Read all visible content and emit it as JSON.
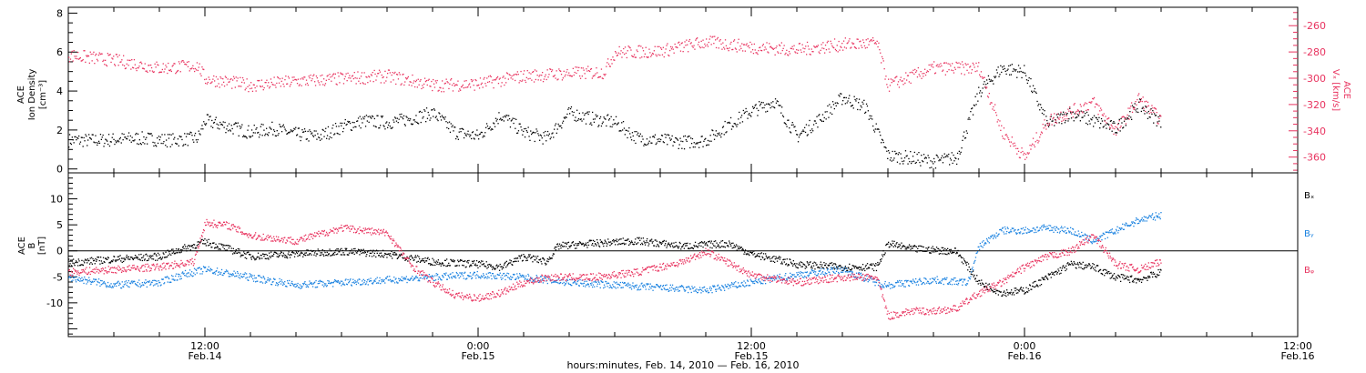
{
  "chart_data": [
    {
      "type": "scatter",
      "panel": "top",
      "ylabel": [
        "ACE",
        "Ion Density",
        "[cm⁻³]"
      ],
      "ylim": [
        -0.2,
        8.3
      ],
      "yticks": [
        0,
        2,
        4,
        6,
        8
      ],
      "y2label": [
        "ACE",
        "Vₓ [km/s]"
      ],
      "y2lim": [
        -372,
        -246
      ],
      "y2ticks": [
        -260,
        -280,
        -300,
        -320,
        -340,
        -360
      ],
      "series": [
        {
          "color": "#000000",
          "axis": "left",
          "points": [
            [
              "2010-02-14T06:00",
              1.5
            ],
            [
              "2010-02-14T07:30",
              1.5
            ],
            [
              "2010-02-14T09:00",
              1.6
            ],
            [
              "2010-02-14T10:30",
              1.5
            ],
            [
              "2010-02-14T11:40",
              1.6
            ],
            [
              "2010-02-14T12:00",
              2.5
            ],
            [
              "2010-02-14T13:00",
              2.2
            ],
            [
              "2010-02-14T14:00",
              1.9
            ],
            [
              "2010-02-14T15:00",
              2.1
            ],
            [
              "2010-02-14T16:00",
              1.8
            ],
            [
              "2010-02-14T17:00",
              1.7
            ],
            [
              "2010-02-14T18:00",
              2.2
            ],
            [
              "2010-02-14T19:00",
              2.5
            ],
            [
              "2010-02-14T20:00",
              2.4
            ],
            [
              "2010-02-14T21:00",
              2.6
            ],
            [
              "2010-02-14T22:00",
              2.9
            ],
            [
              "2010-02-14T23:00",
              1.9
            ],
            [
              "2010-02-15T00:00",
              1.7
            ],
            [
              "2010-02-15T01:00",
              2.8
            ],
            [
              "2010-02-15T02:00",
              1.9
            ],
            [
              "2010-02-15T03:00",
              1.6
            ],
            [
              "2010-02-15T04:00",
              2.9
            ],
            [
              "2010-02-15T05:00",
              2.6
            ],
            [
              "2010-02-15T06:00",
              2.4
            ],
            [
              "2010-02-15T07:00",
              1.6
            ],
            [
              "2010-02-15T08:00",
              1.5
            ],
            [
              "2010-02-15T09:00",
              1.4
            ],
            [
              "2010-02-15T10:00",
              1.5
            ],
            [
              "2010-02-15T11:00",
              2.3
            ],
            [
              "2010-02-15T12:00",
              3.0
            ],
            [
              "2010-02-15T13:00",
              3.5
            ],
            [
              "2010-02-15T14:00",
              1.7
            ],
            [
              "2010-02-15T15:00",
              2.6
            ],
            [
              "2010-02-15T16:00",
              3.7
            ],
            [
              "2010-02-15T17:00",
              3.2
            ],
            [
              "2010-02-15T18:00",
              0.7
            ],
            [
              "2010-02-15T19:00",
              0.6
            ],
            [
              "2010-02-15T20:00",
              0.4
            ],
            [
              "2010-02-15T21:00",
              0.6
            ],
            [
              "2010-02-15T22:00",
              4.0
            ],
            [
              "2010-02-15T23:00",
              5.2
            ],
            [
              "2010-02-16T00:00",
              5.0
            ],
            [
              "2010-02-16T01:00",
              2.3
            ],
            [
              "2010-02-16T02:00",
              2.9
            ],
            [
              "2010-02-16T03:00",
              2.5
            ],
            [
              "2010-02-16T04:00",
              2.1
            ],
            [
              "2010-02-16T05:00",
              3.3
            ],
            [
              "2010-02-16T06:00",
              2.4
            ]
          ]
        },
        {
          "color": "#e8335f",
          "axis": "right",
          "points": [
            [
              "2010-02-14T06:00",
              -282
            ],
            [
              "2010-02-14T08:00",
              -286
            ],
            [
              "2010-02-14T10:00",
              -292
            ],
            [
              "2010-02-14T11:40",
              -290
            ],
            [
              "2010-02-14T12:00",
              -300
            ],
            [
              "2010-02-14T14:00",
              -305
            ],
            [
              "2010-02-14T16:00",
              -302
            ],
            [
              "2010-02-14T18:00",
              -300
            ],
            [
              "2010-02-14T20:00",
              -298
            ],
            [
              "2010-02-14T22:00",
              -305
            ],
            [
              "2010-02-15T00:00",
              -304
            ],
            [
              "2010-02-15T02:00",
              -298
            ],
            [
              "2010-02-15T04:00",
              -296
            ],
            [
              "2010-02-15T05:30",
              -295
            ],
            [
              "2010-02-15T06:00",
              -280
            ],
            [
              "2010-02-15T08:00",
              -279
            ],
            [
              "2010-02-15T10:00",
              -272
            ],
            [
              "2010-02-15T12:00",
              -276
            ],
            [
              "2010-02-15T14:00",
              -278
            ],
            [
              "2010-02-15T16:00",
              -274
            ],
            [
              "2010-02-15T17:30",
              -273
            ],
            [
              "2010-02-15T18:00",
              -305
            ],
            [
              "2010-02-15T20:00",
              -292
            ],
            [
              "2010-02-15T22:00",
              -292
            ],
            [
              "2010-02-15T23:00",
              -340
            ],
            [
              "2010-02-16T00:00",
              -360
            ],
            [
              "2010-02-16T01:00",
              -332
            ],
            [
              "2010-02-16T02:00",
              -325
            ],
            [
              "2010-02-16T03:00",
              -318
            ],
            [
              "2010-02-16T04:00",
              -340
            ],
            [
              "2010-02-16T05:00",
              -315
            ],
            [
              "2010-02-16T06:00",
              -332
            ]
          ]
        }
      ]
    },
    {
      "type": "scatter",
      "panel": "bottom",
      "ylabel": [
        "ACE",
        "B",
        "[nT]"
      ],
      "ylim": [
        -16.5,
        15
      ],
      "yticks": [
        -10,
        -5,
        0,
        5,
        10
      ],
      "zero_line": true,
      "xlabel": "hours:minutes, Feb. 14, 2010 — Feb. 16, 2010",
      "xlim": [
        "2010-02-14T06:00",
        "2010-02-16T12:00"
      ],
      "xtick_labels": [
        {
          "t": "2010-02-14T12:00",
          "time": "12:00",
          "date": "Feb.14"
        },
        {
          "t": "2010-02-15T00:00",
          "time": "0:00",
          "date": "Feb.15"
        },
        {
          "t": "2010-02-15T12:00",
          "time": "12:00",
          "date": "Feb.15"
        },
        {
          "t": "2010-02-16T00:00",
          "time": "0:00",
          "date": "Feb.16"
        },
        {
          "t": "2010-02-16T12:00",
          "time": "12:00",
          "date": "Feb.16"
        }
      ],
      "series": [
        {
          "name": "Bₓ",
          "color": "#000000",
          "points": [
            [
              "2010-02-14T06:00",
              -2.2
            ],
            [
              "2010-02-14T08:00",
              -1.5
            ],
            [
              "2010-02-14T10:00",
              -1.0
            ],
            [
              "2010-02-14T11:00",
              0.5
            ],
            [
              "2010-02-14T12:00",
              1.8
            ],
            [
              "2010-02-14T13:00",
              0.5
            ],
            [
              "2010-02-14T14:00",
              -1.0
            ],
            [
              "2010-02-14T16:00",
              -0.5
            ],
            [
              "2010-02-14T18:00",
              0.0
            ],
            [
              "2010-02-14T20:00",
              -0.5
            ],
            [
              "2010-02-14T22:00",
              -2.0
            ],
            [
              "2010-02-15T00:00",
              -2.5
            ],
            [
              "2010-02-15T01:00",
              -3.0
            ],
            [
              "2010-02-15T02:00",
              -1.0
            ],
            [
              "2010-02-15T03:00",
              -2.0
            ],
            [
              "2010-02-15T03:30",
              1.0
            ],
            [
              "2010-02-15T05:00",
              1.5
            ],
            [
              "2010-02-15T07:00",
              2.0
            ],
            [
              "2010-02-15T09:00",
              1.0
            ],
            [
              "2010-02-15T11:00",
              1.5
            ],
            [
              "2010-02-15T12:00",
              -0.5
            ],
            [
              "2010-02-15T14:00",
              -2.5
            ],
            [
              "2010-02-15T16:00",
              -3.0
            ],
            [
              "2010-02-15T17:30",
              -3.0
            ],
            [
              "2010-02-15T18:00",
              1.5
            ],
            [
              "2010-02-15T19:00",
              0.5
            ],
            [
              "2010-02-15T21:00",
              0.0
            ],
            [
              "2010-02-15T22:00",
              -6.0
            ],
            [
              "2010-02-15T23:00",
              -8.0
            ],
            [
              "2010-02-16T00:00",
              -7.5
            ],
            [
              "2010-02-16T01:00",
              -5.0
            ],
            [
              "2010-02-16T02:00",
              -2.5
            ],
            [
              "2010-02-16T03:00",
              -3.0
            ],
            [
              "2010-02-16T04:00",
              -5.0
            ],
            [
              "2010-02-16T05:00",
              -5.5
            ],
            [
              "2010-02-16T06:00",
              -4.0
            ]
          ]
        },
        {
          "name": "Bᵧ",
          "color": "#1a82e0",
          "points": [
            [
              "2010-02-14T06:00",
              -5.0
            ],
            [
              "2010-02-14T08:00",
              -6.5
            ],
            [
              "2010-02-14T10:00",
              -6.0
            ],
            [
              "2010-02-14T11:00",
              -4.5
            ],
            [
              "2010-02-14T12:00",
              -3.5
            ],
            [
              "2010-02-14T14:00",
              -5.0
            ],
            [
              "2010-02-14T16:00",
              -6.5
            ],
            [
              "2010-02-14T18:00",
              -6.0
            ],
            [
              "2010-02-14T20:00",
              -5.5
            ],
            [
              "2010-02-14T22:00",
              -5.0
            ],
            [
              "2010-02-15T00:00",
              -4.5
            ],
            [
              "2010-02-15T02:00",
              -5.0
            ],
            [
              "2010-02-15T04:00",
              -6.0
            ],
            [
              "2010-02-15T06:00",
              -6.5
            ],
            [
              "2010-02-15T08:00",
              -7.0
            ],
            [
              "2010-02-15T10:00",
              -7.5
            ],
            [
              "2010-02-15T12:00",
              -6.0
            ],
            [
              "2010-02-15T14:00",
              -4.5
            ],
            [
              "2010-02-15T16:00",
              -3.5
            ],
            [
              "2010-02-15T17:30",
              -6.0
            ],
            [
              "2010-02-15T18:00",
              -6.5
            ],
            [
              "2010-02-15T20:00",
              -5.5
            ],
            [
              "2010-02-15T21:30",
              -6.0
            ],
            [
              "2010-02-15T22:00",
              1.0
            ],
            [
              "2010-02-15T23:00",
              4.0
            ],
            [
              "2010-02-16T00:00",
              4.0
            ],
            [
              "2010-02-16T01:00",
              4.5
            ],
            [
              "2010-02-16T02:00",
              4.0
            ],
            [
              "2010-02-16T03:00",
              2.0
            ],
            [
              "2010-02-16T04:00",
              4.0
            ],
            [
              "2010-02-16T05:00",
              6.0
            ],
            [
              "2010-02-16T06:00",
              7.0
            ]
          ]
        },
        {
          "name": "Bᵩ",
          "color": "#e8335f",
          "points": [
            [
              "2010-02-14T06:00",
              -4.0
            ],
            [
              "2010-02-14T08:00",
              -3.5
            ],
            [
              "2010-02-14T10:00",
              -3.0
            ],
            [
              "2010-02-14T11:30",
              -2.0
            ],
            [
              "2010-02-14T12:00",
              5.5
            ],
            [
              "2010-02-14T13:00",
              5.0
            ],
            [
              "2010-02-14T14:00",
              3.0
            ],
            [
              "2010-02-14T16:00",
              2.0
            ],
            [
              "2010-02-14T18:00",
              4.5
            ],
            [
              "2010-02-14T20:00",
              3.5
            ],
            [
              "2010-02-14T21:00",
              -2.5
            ],
            [
              "2010-02-14T22:00",
              -6.0
            ],
            [
              "2010-02-14T23:00",
              -8.5
            ],
            [
              "2010-02-15T00:00",
              -9.0
            ],
            [
              "2010-02-15T01:00",
              -8.0
            ],
            [
              "2010-02-15T02:00",
              -6.0
            ],
            [
              "2010-02-15T03:00",
              -5.0
            ],
            [
              "2010-02-15T05:00",
              -5.0
            ],
            [
              "2010-02-15T07:00",
              -4.0
            ],
            [
              "2010-02-15T09:00",
              -2.0
            ],
            [
              "2010-02-15T10:00",
              0.0
            ],
            [
              "2010-02-15T12:00",
              -4.5
            ],
            [
              "2010-02-15T14:00",
              -6.0
            ],
            [
              "2010-02-15T16:00",
              -5.0
            ],
            [
              "2010-02-15T17:30",
              -5.0
            ],
            [
              "2010-02-15T18:00",
              -12.5
            ],
            [
              "2010-02-15T19:00",
              -11.5
            ],
            [
              "2010-02-15T20:00",
              -11.5
            ],
            [
              "2010-02-15T21:00",
              -11.0
            ],
            [
              "2010-02-15T22:00",
              -8.0
            ],
            [
              "2010-02-15T23:00",
              -6.0
            ],
            [
              "2010-02-16T00:00",
              -3.0
            ],
            [
              "2010-02-16T01:00",
              -1.0
            ],
            [
              "2010-02-16T02:00",
              0.0
            ],
            [
              "2010-02-16T03:00",
              3.0
            ],
            [
              "2010-02-16T04:00",
              -2.5
            ],
            [
              "2010-02-16T05:00",
              -3.5
            ],
            [
              "2010-02-16T06:00",
              -2.0
            ]
          ]
        }
      ]
    }
  ]
}
